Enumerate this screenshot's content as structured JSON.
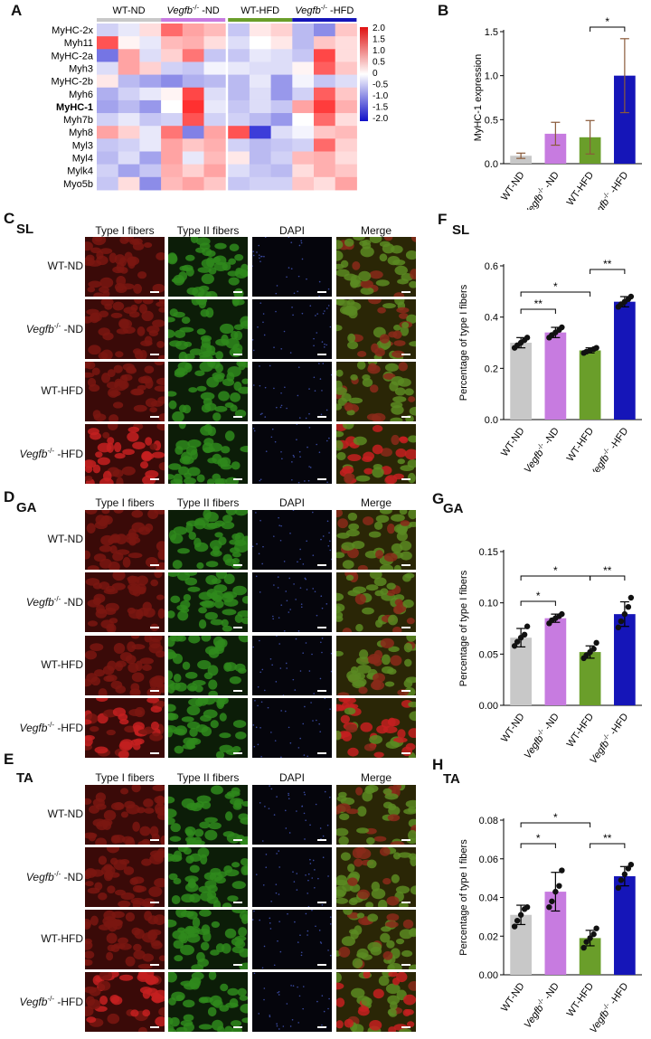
{
  "panel_letters": {
    "A": "A",
    "B": "B",
    "C": "C",
    "D": "D",
    "E": "E",
    "F": "F",
    "G": "G",
    "H": "H"
  },
  "tissues": {
    "SL": "SL",
    "GA": "GA",
    "TA": "TA"
  },
  "group_names": [
    {
      "pre": "WT-ND",
      "italic": "",
      "sup": "",
      "post": ""
    },
    {
      "pre": "",
      "italic": "Vegfb",
      "sup": "-/-",
      "post": " -ND"
    },
    {
      "pre": "WT-HFD",
      "italic": "",
      "sup": "",
      "post": ""
    },
    {
      "pre": "",
      "italic": "Vegfb",
      "sup": "-/-",
      "post": " -HFD"
    }
  ],
  "image_columns": [
    "Type I fibers",
    "Type II fibers",
    "DAPI",
    "Merge"
  ],
  "colors": {
    "wt_nd": "#c8c8c8",
    "ko_nd": "#c77be0",
    "wt_hfd": "#6a9e2a",
    "ko_hfd": "#1515b8",
    "tick_low": "#1a1aa8",
    "tick_high": "#d91a1a"
  },
  "chart_data": [
    {
      "id": "A",
      "type": "heatmap",
      "rows": [
        "MyHC-2x",
        "Myh11",
        "MyHC-2a",
        "Myh3",
        "MyHC-2b",
        "Myh6",
        "MyHC-1",
        "Myh7b",
        "Myh8",
        "Myl3",
        "Myl4",
        "Mylk4",
        "Myo5b"
      ],
      "bold_row": "MyHC-1",
      "group_labels": [
        "WT-ND",
        "Vegfb-/- -ND",
        "WT-HFD",
        "Vegfb-/- -HFD"
      ],
      "columns_per_group": 3,
      "colorbar_ticks": [
        "2.0",
        "1.5",
        "1.0",
        "0.5",
        "0",
        "-0.5",
        "-1.0",
        "-1.5",
        "-2.0"
      ],
      "value_range": [
        -2,
        2
      ],
      "values": [
        [
          -0.4,
          -0.2,
          0.3,
          1.3,
          0.8,
          0.6,
          -0.5,
          0.2,
          0.4,
          -0.6,
          -1.0,
          0.5
        ],
        [
          1.5,
          0.1,
          -0.2,
          0.6,
          0.7,
          0.3,
          -0.3,
          0.0,
          0.2,
          -0.6,
          0.5,
          0.3
        ],
        [
          -1.2,
          0.8,
          -0.3,
          0.4,
          1.2,
          -0.5,
          -0.5,
          -0.2,
          -0.3,
          -0.5,
          1.6,
          0.3
        ],
        [
          -0.3,
          0.8,
          0.4,
          -0.4,
          -0.5,
          -0.1,
          -0.2,
          -0.3,
          -0.3,
          0.1,
          1.4,
          0.5
        ],
        [
          0.2,
          -0.6,
          -0.8,
          -1.0,
          -0.7,
          -0.6,
          -0.6,
          -0.2,
          -0.9,
          -0.1,
          -0.5,
          -0.3
        ],
        [
          -0.7,
          -0.4,
          -0.2,
          0.1,
          1.6,
          -0.3,
          -0.6,
          -0.3,
          -0.9,
          -0.4,
          1.4,
          0.5
        ],
        [
          -0.8,
          -0.6,
          -0.9,
          0.0,
          1.8,
          -0.2,
          -0.5,
          -0.3,
          -0.5,
          0.8,
          1.7,
          0.7
        ],
        [
          -0.4,
          -0.2,
          -0.5,
          -0.4,
          1.5,
          -0.4,
          -0.4,
          -0.6,
          -0.9,
          0.0,
          1.3,
          0.3
        ],
        [
          0.8,
          0.4,
          -0.2,
          1.2,
          -1.1,
          0.8,
          1.5,
          -1.7,
          -0.3,
          -0.1,
          0.5,
          0.6
        ],
        [
          -0.5,
          -0.4,
          -0.2,
          0.8,
          0.5,
          0.7,
          -0.4,
          -0.6,
          -0.5,
          -0.4,
          1.3,
          0.4
        ],
        [
          -0.6,
          -0.3,
          -0.8,
          0.8,
          -0.2,
          0.6,
          0.2,
          -0.6,
          -0.4,
          0.6,
          0.7,
          0.3
        ],
        [
          -0.4,
          -0.8,
          -0.5,
          0.7,
          0.4,
          0.8,
          -0.3,
          -0.5,
          -0.6,
          0.3,
          0.7,
          0.5
        ],
        [
          -0.5,
          0.3,
          -1.0,
          0.6,
          0.8,
          0.5,
          -0.5,
          -0.4,
          -0.4,
          0.5,
          0.3,
          0.8
        ]
      ]
    },
    {
      "id": "B",
      "type": "bar",
      "categories": [
        "WT-ND",
        "Vegfb-/- -ND",
        "WT-HFD",
        "Vegfb-/- -HFD"
      ],
      "values": [
        0.09,
        0.34,
        0.3,
        1.0
      ],
      "errors": [
        0.03,
        0.13,
        0.19,
        0.42
      ],
      "ylabel": "MyHC-1 expression",
      "ylim": [
        0,
        1.5
      ],
      "yticks": [
        "0.0",
        "0.5",
        "1.0",
        "1.5"
      ],
      "significance": [
        {
          "from": 2,
          "to": 3,
          "label": "*"
        }
      ]
    },
    {
      "id": "F",
      "type": "bar",
      "title": "SL",
      "categories": [
        "WT-ND",
        "Vegfb-/- -ND",
        "WT-HFD",
        "Vegfb-/- -HFD"
      ],
      "values": [
        0.3,
        0.34,
        0.27,
        0.46
      ],
      "errors": [
        0.02,
        0.02,
        0.01,
        0.02
      ],
      "points": [
        [
          0.28,
          0.29,
          0.3,
          0.31,
          0.32
        ],
        [
          0.32,
          0.33,
          0.34,
          0.35,
          0.36
        ],
        [
          0.26,
          0.265,
          0.27,
          0.275,
          0.28
        ],
        [
          0.44,
          0.45,
          0.46,
          0.47,
          0.48
        ]
      ],
      "ylabel": "Percentage of type I fibers",
      "ylim": [
        0,
        0.6
      ],
      "yticks": [
        "0.0",
        "0.2",
        "0.4",
        "0.6"
      ],
      "significance": [
        {
          "from": 0,
          "to": 1,
          "label": "**"
        },
        {
          "from": 0,
          "to": 2,
          "label": "*"
        },
        {
          "from": 2,
          "to": 3,
          "label": "**"
        }
      ]
    },
    {
      "id": "G",
      "type": "bar",
      "title": "GA",
      "categories": [
        "WT-ND",
        "Vegfb-/- -ND",
        "WT-HFD",
        "Vegfb-/- -HFD"
      ],
      "values": [
        0.066,
        0.085,
        0.052,
        0.089
      ],
      "errors": [
        0.009,
        0.004,
        0.006,
        0.012
      ],
      "points": [
        [
          0.058,
          0.062,
          0.066,
          0.069,
          0.077
        ],
        [
          0.08,
          0.083,
          0.085,
          0.087,
          0.089
        ],
        [
          0.046,
          0.049,
          0.052,
          0.055,
          0.061
        ],
        [
          0.076,
          0.082,
          0.089,
          0.096,
          0.105
        ]
      ],
      "ylabel": "Percentage of type I fibers",
      "ylim": [
        0,
        0.15
      ],
      "yticks": [
        "0.00",
        "0.05",
        "0.10",
        "0.15"
      ],
      "significance": [
        {
          "from": 0,
          "to": 1,
          "label": "*"
        },
        {
          "from": 0,
          "to": 2,
          "label": "*"
        },
        {
          "from": 2,
          "to": 3,
          "label": "**"
        }
      ]
    },
    {
      "id": "H",
      "type": "bar",
      "title": "TA",
      "categories": [
        "WT-ND",
        "Vegfb-/- -ND",
        "WT-HFD",
        "Vegfb-/- -HFD"
      ],
      "values": [
        0.031,
        0.043,
        0.019,
        0.051
      ],
      "errors": [
        0.005,
        0.01,
        0.004,
        0.005
      ],
      "points": [
        [
          0.025,
          0.028,
          0.031,
          0.034,
          0.035
        ],
        [
          0.035,
          0.038,
          0.043,
          0.046,
          0.054
        ],
        [
          0.014,
          0.017,
          0.019,
          0.021,
          0.024
        ],
        [
          0.045,
          0.049,
          0.052,
          0.055,
          0.057
        ]
      ],
      "ylabel": "Percentage of type I fibers",
      "ylim": [
        0,
        0.08
      ],
      "yticks": [
        "0.00",
        "0.02",
        "0.04",
        "0.06",
        "0.08"
      ],
      "significance": [
        {
          "from": 0,
          "to": 1,
          "label": "*"
        },
        {
          "from": 0,
          "to": 2,
          "label": "*"
        },
        {
          "from": 2,
          "to": 3,
          "label": "**"
        }
      ]
    }
  ]
}
